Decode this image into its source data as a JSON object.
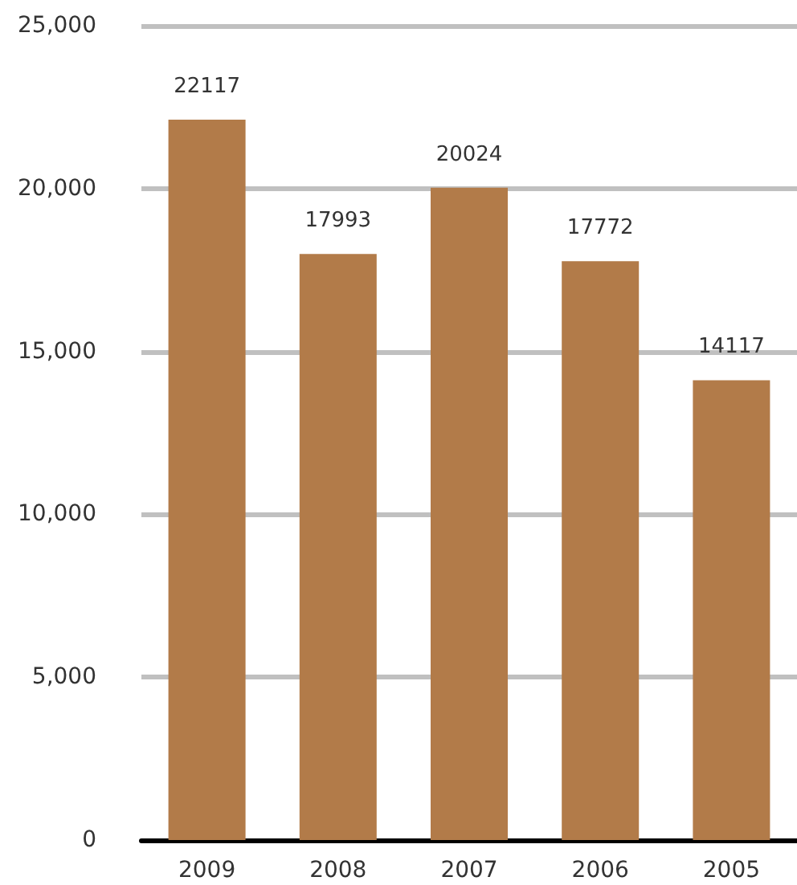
{
  "chart_data": {
    "type": "bar",
    "categories": [
      "2009",
      "2008",
      "2007",
      "2006",
      "2005"
    ],
    "values": [
      22117,
      17993,
      20024,
      17772,
      14117
    ],
    "color": "#b27b49",
    "ylim": [
      0,
      25000
    ],
    "yticks": [
      0,
      {
        "value": 5000,
        "label": "5,000"
      },
      {
        "value": 10000,
        "label": "10,000"
      },
      {
        "value": 15000,
        "label": "15,000"
      },
      {
        "value": 20000,
        "label": "20,000"
      },
      {
        "value": 25000,
        "label": "25,000"
      }
    ],
    "grid": "y",
    "data_labels": true
  }
}
